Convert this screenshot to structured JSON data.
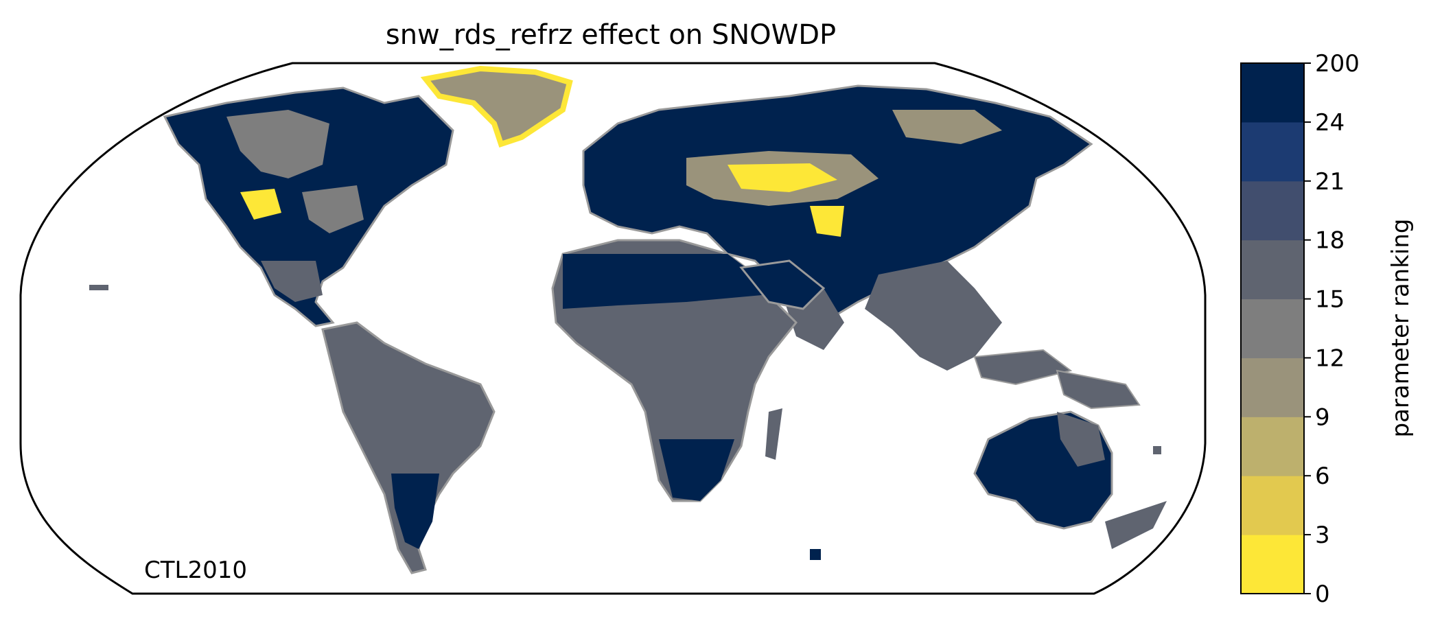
{
  "title": "snw_rds_refrz effect on SNOWDP",
  "map_label": "CTL2010",
  "colorbar": {
    "label": "parameter ranking",
    "ticks": [
      "0",
      "3",
      "6",
      "9",
      "12",
      "15",
      "18",
      "21",
      "24",
      "200"
    ],
    "colors": [
      "#fde737",
      "#e2c94f",
      "#bdb06d",
      "#9a937b",
      "#7e7e7e",
      "#5f6470",
      "#414e6e",
      "#1c3b72",
      "#00224e"
    ]
  },
  "colors": {
    "land_default": "#5f6470",
    "snow_high": "#00224e",
    "snow_low": "#fde737",
    "coastline": "#9a9a9a",
    "outline": "#000000"
  }
}
